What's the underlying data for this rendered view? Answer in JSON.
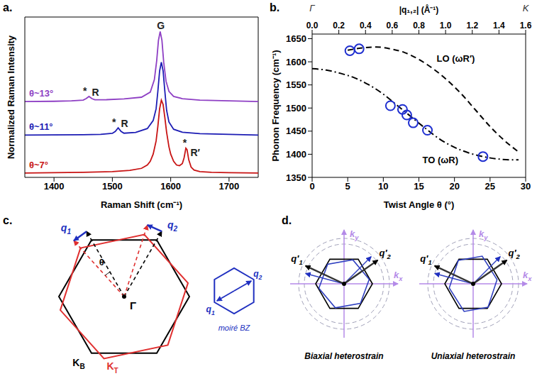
{
  "chart_data": [
    {
      "type": "line",
      "panel": "a.",
      "x_label": "Raman Shift (cm⁻¹)",
      "y_label": "Normalized Raman Intensity",
      "xlim": [
        1350,
        1750
      ],
      "xticks": [
        1400,
        1500,
        1600,
        1700
      ],
      "ylim": [
        0,
        11
      ],
      "yticks": [],
      "tick_labels": "x",
      "series": [
        {
          "name": "θ~13°",
          "color": "#8e3fc4",
          "x": [
            1350,
            1400,
            1430,
            1450,
            1455,
            1460,
            1465,
            1470,
            1490,
            1520,
            1550,
            1565,
            1572,
            1576,
            1579,
            1582,
            1585,
            1588,
            1592,
            1597,
            1605,
            1620,
            1650,
            1700,
            1750
          ],
          "values": [
            5.2,
            5.22,
            5.25,
            5.3,
            5.4,
            5.55,
            5.4,
            5.32,
            5.33,
            5.38,
            5.5,
            5.85,
            6.7,
            8.0,
            9.4,
            10.0,
            9.4,
            7.9,
            6.6,
            5.9,
            5.55,
            5.4,
            5.3,
            5.25,
            5.2
          ]
        },
        {
          "name": "θ~11°",
          "color": "#1c1cb4",
          "x": [
            1350,
            1400,
            1450,
            1480,
            1500,
            1505,
            1510,
            1515,
            1520,
            1540,
            1560,
            1570,
            1575,
            1578,
            1581,
            1584,
            1587,
            1590,
            1593,
            1597,
            1605,
            1620,
            1650,
            1700,
            1750
          ],
          "values": [
            2.9,
            2.91,
            2.93,
            2.95,
            3.02,
            3.15,
            3.4,
            3.15,
            3.03,
            3.08,
            3.35,
            3.9,
            4.7,
            5.9,
            7.3,
            7.9,
            7.3,
            5.9,
            4.6,
            3.8,
            3.3,
            3.1,
            3.0,
            2.95,
            2.9
          ]
        },
        {
          "name": "θ~7°",
          "color": "#c81414",
          "x": [
            1350,
            1400,
            1450,
            1500,
            1530,
            1550,
            1560,
            1565,
            1570,
            1575,
            1578,
            1581,
            1584,
            1587,
            1590,
            1593,
            1597,
            1600,
            1605,
            1610,
            1615,
            1620,
            1623,
            1626,
            1628,
            1631,
            1635,
            1640,
            1650,
            1670,
            1700,
            1750
          ],
          "values": [
            0.3,
            0.32,
            0.35,
            0.4,
            0.48,
            0.62,
            0.85,
            1.1,
            1.6,
            2.5,
            3.5,
            4.7,
            5.3,
            5.0,
            4.1,
            3.1,
            2.1,
            1.6,
            1.1,
            0.85,
            0.8,
            0.95,
            1.35,
            2.0,
            1.9,
            1.2,
            0.7,
            0.5,
            0.4,
            0.35,
            0.32,
            0.3
          ]
        }
      ],
      "annotations": [
        {
          "text": "G",
          "x": 1583,
          "y": 10.15
        },
        {
          "text": "*",
          "x": 1453,
          "y": 5.7
        },
        {
          "text": "R",
          "x": 1471,
          "y": 5.62
        },
        {
          "text": "*",
          "x": 1503,
          "y": 3.55
        },
        {
          "text": "R",
          "x": 1521,
          "y": 3.47
        },
        {
          "text": "*",
          "x": 1624,
          "y": 2.15
        },
        {
          "text": "R′",
          "x": 1642,
          "y": 1.45
        }
      ]
    },
    {
      "type": "scatter",
      "panel": "b.",
      "x_label": "Twist Angle θ (°)",
      "y_label": "Phonon Frequency (cm⁻¹)",
      "x2_label": "|q₁,₂| (Å⁻¹)",
      "xlim": [
        0,
        30
      ],
      "xticks": [
        0,
        5,
        10,
        15,
        20,
        25,
        30
      ],
      "ylim": [
        1350,
        1660
      ],
      "yticks": [
        1350,
        1400,
        1450,
        1500,
        1550,
        1600,
        1650
      ],
      "x2lim": [
        0,
        1.6
      ],
      "x2ticks": [
        {
          "value": 0,
          "label": "0.0"
        },
        0.2,
        0.4,
        0.6,
        0.8,
        {
          "value": 1,
          "label": "1.0"
        },
        1.2,
        1.4,
        1.6
      ],
      "x2_points": [
        {
          "value": 0,
          "label": "Γ"
        },
        {
          "value": 1.6,
          "label": "K"
        }
      ],
      "series": [
        {
          "type": "scatter",
          "color": "#1f2fd0",
          "marker": "open_circle",
          "x": [
            5.3,
            6.6,
            11,
            12.7,
            13.3,
            14.2,
            16.2,
            24
          ],
          "values": [
            1624,
            1628,
            1505,
            1497,
            1485,
            1468,
            1452,
            1395
          ]
        },
        {
          "type": "line",
          "color": "#000000",
          "line_style": "dashed",
          "x": [
            5,
            7,
            9,
            11,
            13,
            15,
            17,
            19,
            21,
            23,
            25,
            27,
            29
          ],
          "values": [
            1625,
            1630,
            1632,
            1628,
            1620,
            1605,
            1585,
            1560,
            1530,
            1495,
            1460,
            1430,
            1405
          ]
        },
        {
          "type": "line",
          "color": "#000000",
          "line_style": "dashdot",
          "x": [
            0,
            2,
            4,
            6,
            8,
            10,
            12,
            14,
            16,
            18,
            20,
            22,
            24,
            26,
            28,
            29
          ],
          "values": [
            1585,
            1582,
            1575,
            1565,
            1550,
            1530,
            1505,
            1480,
            1455,
            1432,
            1415,
            1403,
            1395,
            1390,
            1388,
            1388
          ]
        }
      ],
      "annotations": [
        {
          "text": "LO (ωR′)",
          "x": 17.5,
          "y": 1600
        },
        {
          "text": "TO (ωR)",
          "x": 15.5,
          "y": 1380
        }
      ]
    }
  ],
  "diagrams": [
    {
      "panel": "c.",
      "theta": "θ",
      "gamma": "Γ",
      "q1": {
        "text": "q",
        "sub": "1"
      },
      "q2": {
        "text": "q",
        "sub": "2"
      },
      "k_b": {
        "text": "K",
        "sub": "B"
      },
      "k_t": {
        "text": "K",
        "sub": "T"
      },
      "moire": "moiré BZ"
    },
    {
      "panel": "d.",
      "q1": {
        "text": "q′",
        "sub": "1"
      },
      "q2": {
        "text": "q′",
        "sub": "2"
      },
      "kx": {
        "text": "k",
        "sub": "x"
      },
      "ky": {
        "text": "k",
        "sub": "y"
      },
      "titles": [
        "Biaxial heterostrain",
        "Uniaxial heterostrain"
      ]
    }
  ]
}
